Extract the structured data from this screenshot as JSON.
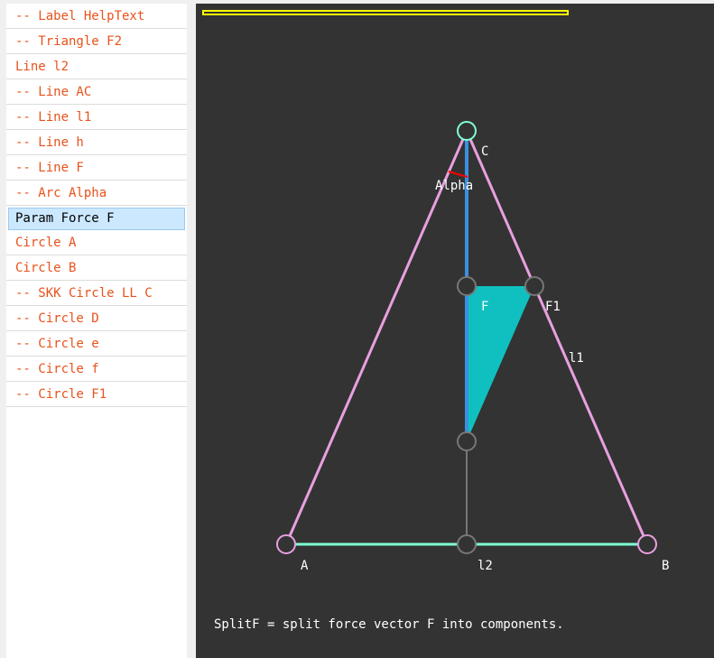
{
  "sidebar": {
    "items": [
      {
        "label": "-- Label HelpText"
      },
      {
        "label": "-- Triangle F2"
      },
      {
        "label": "Line l2"
      },
      {
        "label": "-- Line AC"
      },
      {
        "label": "-- Line l1"
      },
      {
        "label": "-- Line h"
      },
      {
        "label": "-- Line F"
      },
      {
        "label": "-- Arc Alpha"
      },
      {
        "label": "Param Force F"
      },
      {
        "label": "Circle A"
      },
      {
        "label": "Circle B"
      },
      {
        "label": "-- SKK Circle LL C"
      },
      {
        "label": "-- Circle D"
      },
      {
        "label": "-- Circle e"
      },
      {
        "label": "-- Circle f"
      },
      {
        "label": "-- Circle F1"
      }
    ],
    "selected_label": "Param Force F"
  },
  "canvas": {
    "labels": {
      "A": "A",
      "B": "B",
      "C": "C",
      "F": "F",
      "F1": "F1",
      "l1": "l1",
      "l2": "l2",
      "alpha": "Alpha"
    },
    "help_text": "SplitF = split force vector F into components."
  },
  "colors": {
    "canvas_bg": "#333333",
    "triangle_sides": "#e8a0e0",
    "base_line": "#7fffd4",
    "force_line": "#3b8fe0",
    "force_triangle": "#10c0c0",
    "point_circle": "#777777",
    "arc": "#ff0000",
    "highlight_bar": "#ffff00",
    "item_text": "#e8521b"
  }
}
